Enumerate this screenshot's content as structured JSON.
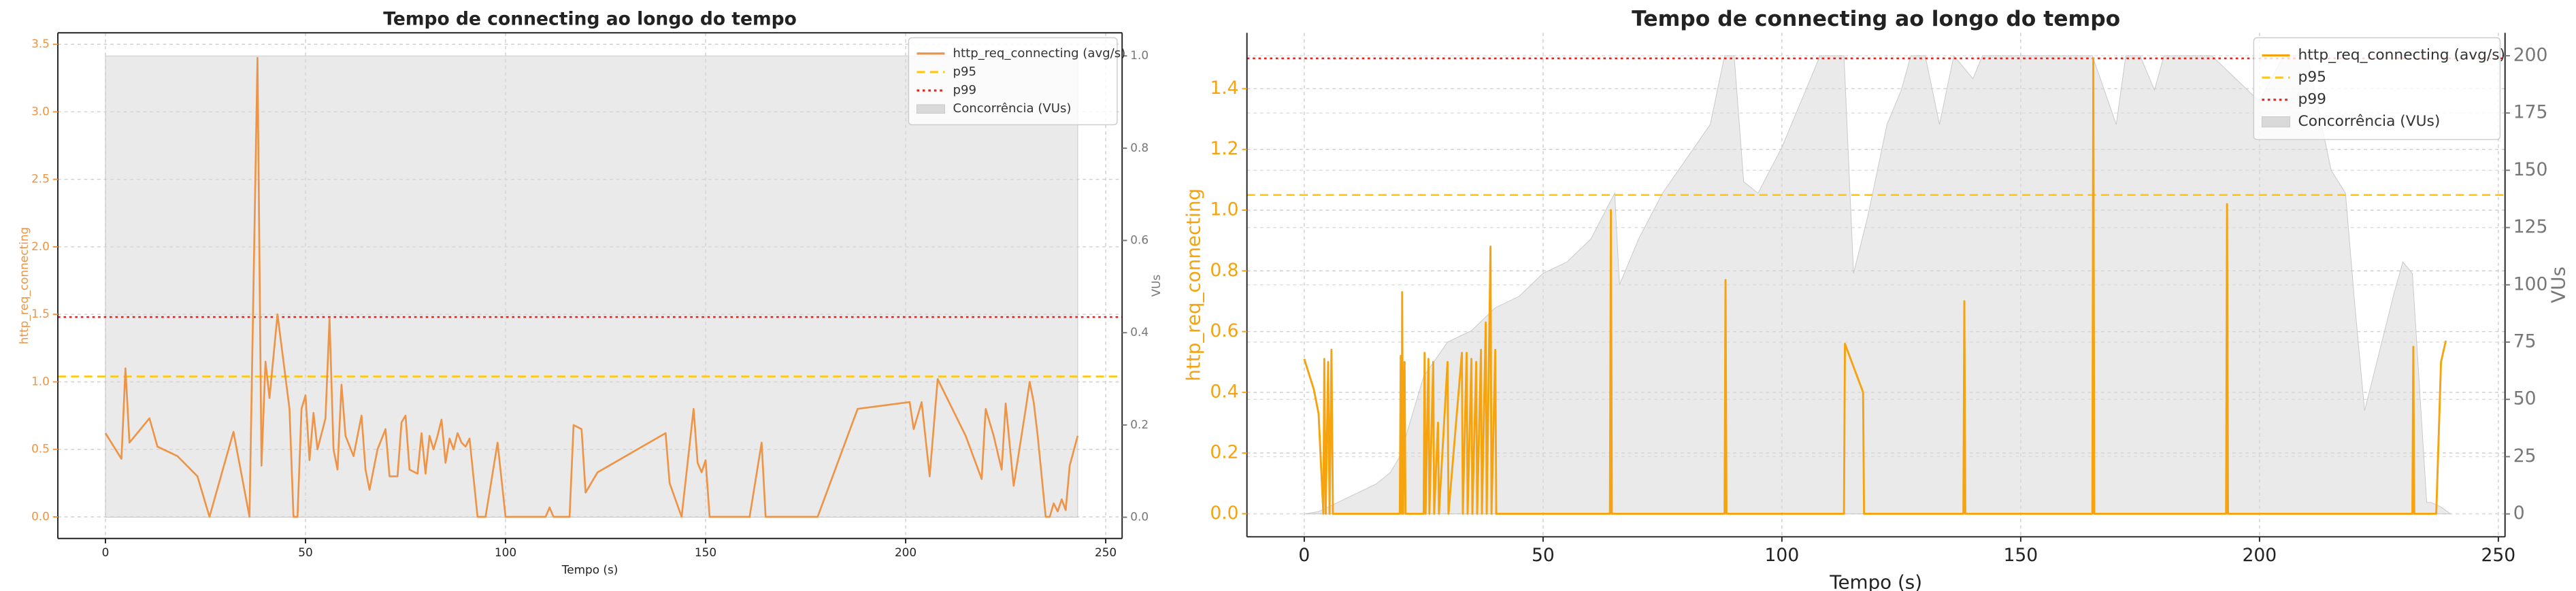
{
  "chart_data": [
    {
      "type": "line",
      "title": "Tempo de connecting ao longo do tempo",
      "xlabel": "Tempo (s)",
      "ylabel": "http_req_connecting",
      "y2label": "VUs",
      "xlim": [
        -11.9,
        254.1
      ],
      "xticks": [
        0,
        50,
        100,
        150,
        200,
        250
      ],
      "ylim": [
        -0.16,
        3.585
      ],
      "yticks": [
        {
          "value": 0,
          "label": "0.0"
        },
        0.5,
        {
          "value": 1,
          "label": "1.0"
        },
        1.5,
        {
          "value": 2,
          "label": "2.0"
        },
        2.5,
        {
          "value": 3,
          "label": "3.0"
        },
        3.5
      ],
      "y2lim": [
        -0.046,
        1.05
      ],
      "y2ticks": [
        {
          "value": 0,
          "label": "0.0"
        },
        0.2,
        0.4,
        0.6,
        0.8,
        {
          "value": 1,
          "label": "1.0"
        }
      ],
      "grid": true,
      "legend": "upper right",
      "series": [
        {
          "name": "http_req_connecting (avg/s)",
          "type": "line",
          "color": "#ee9446",
          "x": [
            0,
            4,
            5,
            6,
            11,
            13,
            18,
            23,
            26,
            32,
            36,
            38,
            39,
            40,
            41,
            43,
            46,
            47,
            48,
            49,
            50,
            51,
            52,
            53,
            55,
            56,
            57,
            58,
            59,
            60,
            62,
            64,
            65,
            66,
            68,
            70,
            71,
            73,
            74,
            75,
            76,
            78,
            79,
            80,
            81,
            82,
            83,
            84,
            85,
            86,
            87,
            88,
            89,
            90,
            91,
            93,
            95,
            98,
            100,
            110,
            111,
            112,
            116,
            117,
            119,
            120,
            123,
            140,
            141,
            144,
            147,
            148,
            149,
            150,
            151,
            161,
            164,
            165,
            178,
            188,
            201,
            202,
            204,
            206,
            208,
            215,
            219,
            220,
            222,
            224,
            225,
            227,
            230,
            231,
            232,
            233,
            235,
            236,
            237,
            238,
            239,
            240,
            241,
            243
          ],
          "values": [
            0.62,
            0.43,
            1.1,
            0.55,
            0.73,
            0.52,
            0.45,
            0.3,
            0,
            0.63,
            0,
            3.4,
            0.38,
            1.15,
            0.88,
            1.5,
            0.8,
            0,
            0,
            0.8,
            0.9,
            0.42,
            0.77,
            0.5,
            0.73,
            1.47,
            0.5,
            0.35,
            0.98,
            0.6,
            0.45,
            0.75,
            0.35,
            0.2,
            0.5,
            0.65,
            0.3,
            0.3,
            0.7,
            0.75,
            0.35,
            0.32,
            0.62,
            0.32,
            0.6,
            0.5,
            0.6,
            0.72,
            0.4,
            0.58,
            0.5,
            0.62,
            0.55,
            0.52,
            0.58,
            0,
            0,
            0.55,
            0,
            0,
            0.07,
            0,
            0,
            0.68,
            0.65,
            0.18,
            0.33,
            0.62,
            0.25,
            0,
            0.8,
            0.4,
            0.33,
            0.42,
            0,
            0,
            0.55,
            0,
            0,
            0.8,
            0.85,
            0.65,
            0.85,
            0.3,
            1.02,
            0.6,
            0.28,
            0.8,
            0.6,
            0.35,
            0.84,
            0.23,
            0.8,
            1.0,
            0.85,
            0.6,
            0,
            0,
            0.1,
            0.04,
            0.13,
            0.05,
            0.38,
            0.6
          ]
        },
        {
          "name": "Concorrência (VUs)",
          "type": "area",
          "axis": "y2",
          "color": "#d9d9d9",
          "x": [
            0,
            243
          ],
          "values": [
            1,
            1
          ]
        }
      ],
      "reference_lines": [
        {
          "name": "p95",
          "value": 1.04,
          "color": "#ffc60a",
          "style": "dashed"
        },
        {
          "name": "p99",
          "value": 1.48,
          "color": "#e8241c",
          "style": "dotted"
        }
      ]
    },
    {
      "type": "line",
      "title": "Tempo de connecting ao longo do tempo",
      "xlabel": "Tempo (s)",
      "ylabel": "http_req_connecting",
      "y2label": "VUs",
      "xlim": [
        -12,
        251.4
      ],
      "xticks": [
        0,
        50,
        100,
        150,
        200,
        250
      ],
      "ylim": [
        -0.076,
        1.584
      ],
      "yticks": [
        {
          "value": 0,
          "label": "0.0"
        },
        0.2,
        0.4,
        0.6,
        0.8,
        {
          "value": 1,
          "label": "1.0"
        },
        1.2,
        1.4
      ],
      "y2lim": [
        -10,
        210
      ],
      "y2ticks": [
        0,
        25,
        50,
        75,
        100,
        125,
        150,
        175,
        200
      ],
      "grid": true,
      "legend": "upper right",
      "series": [
        {
          "name": "http_req_connecting (avg/s)",
          "type": "line",
          "color": "#f5a30f",
          "x": [
            0,
            2,
            3,
            4,
            4.2,
            4.5,
            5,
            5.3,
            5.7,
            6,
            20,
            20.2,
            20.4,
            20.5,
            20.7,
            21,
            21.2,
            25,
            25.2,
            25.4,
            26,
            26.2,
            27,
            27.2,
            28,
            28.2,
            30,
            30.2,
            33,
            33.2,
            34,
            34.2,
            35,
            35.2,
            36,
            36.2,
            37,
            37.2,
            38,
            38.2,
            39,
            39.2,
            40,
            40.2,
            64,
            64.2,
            64.4,
            88,
            88.2,
            88.4,
            113,
            113.2,
            117,
            117.2,
            138,
            138.2,
            138.4,
            165,
            165.2,
            165.4,
            193,
            193.2,
            193.4,
            232,
            232.2,
            232.4,
            237,
            238,
            239
          ],
          "values": [
            0.51,
            0.41,
            0.33,
            0,
            0.51,
            0,
            0.5,
            0,
            0.54,
            0,
            0,
            0.52,
            0,
            0.73,
            0,
            0.5,
            0,
            0,
            0.53,
            0,
            0.51,
            0,
            0.5,
            0,
            0.3,
            0,
            0.5,
            0,
            0.53,
            0,
            0.53,
            0,
            0.51,
            0,
            0.5,
            0,
            0.54,
            0,
            0.63,
            0,
            0.88,
            0,
            0.54,
            0,
            0,
            1.0,
            0,
            0,
            0.77,
            0,
            0,
            0.56,
            0.4,
            0,
            0,
            0.7,
            0,
            0,
            1.5,
            0,
            0,
            1.02,
            0,
            0,
            0.55,
            0,
            0,
            0.5,
            0.57
          ]
        },
        {
          "name": "Concorrência (VUs)",
          "type": "area",
          "axis": "y2",
          "color": "#d9d9d9",
          "x": [
            0,
            3,
            5,
            7,
            10,
            15,
            18,
            20,
            25,
            30,
            35,
            40,
            45,
            50,
            55,
            60,
            65,
            66,
            68,
            70,
            75,
            80,
            85,
            88,
            90,
            92,
            95,
            100,
            105,
            108,
            110,
            113,
            115,
            118,
            122,
            125,
            127,
            130,
            133,
            136,
            140,
            142,
            150,
            160,
            165,
            170,
            172,
            175,
            178,
            180,
            185,
            190,
            195,
            200,
            205,
            210,
            215,
            218,
            220,
            222,
            225,
            228,
            230,
            232,
            235,
            236,
            238,
            240
          ],
          "values": [
            0,
            1,
            3,
            5,
            8,
            13,
            18,
            25,
            60,
            75,
            80,
            90,
            95,
            105,
            110,
            120,
            140,
            100,
            110,
            120,
            140,
            155,
            170,
            200,
            200,
            145,
            140,
            160,
            185,
            200,
            200,
            200,
            105,
            130,
            170,
            185,
            200,
            200,
            170,
            200,
            190,
            200,
            200,
            200,
            200,
            170,
            200,
            200,
            185,
            200,
            200,
            200,
            190,
            180,
            200,
            200,
            150,
            140,
            90,
            45,
            70,
            95,
            110,
            105,
            5,
            5,
            3,
            0
          ]
        }
      ],
      "reference_lines": [
        {
          "name": "p95",
          "value": 1.05,
          "color": "#ffc60a",
          "style": "dashed"
        },
        {
          "name": "p99",
          "value": 1.5,
          "color": "#e8241c",
          "style": "dotted"
        }
      ]
    }
  ]
}
